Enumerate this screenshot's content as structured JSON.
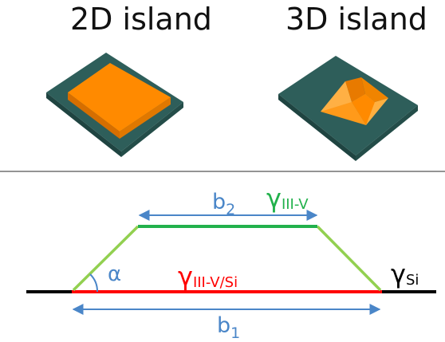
{
  "top": {
    "title_2d": "2D island",
    "title_3d": "3D island"
  },
  "diagram": {
    "b2": "b",
    "b2_sub": "2",
    "b1": "b",
    "b1_sub": "1",
    "alpha": "α",
    "gamma_iiiv": "γ",
    "gamma_iiiv_sub": "III-V",
    "gamma_iiiv_si": "γ",
    "gamma_iiiv_si_sub": "III-V/Si",
    "gamma_si": "γ",
    "gamma_si_sub": "Si"
  },
  "colors": {
    "substrate_top": "#2e5e5a",
    "substrate_side": "#1f4441",
    "island": "#ff8a00",
    "island_side": "#d66e00",
    "green": "#22b14c",
    "light_green": "#92d050",
    "red": "#ff0000",
    "blue": "#4a86c8",
    "black": "#000000"
  }
}
